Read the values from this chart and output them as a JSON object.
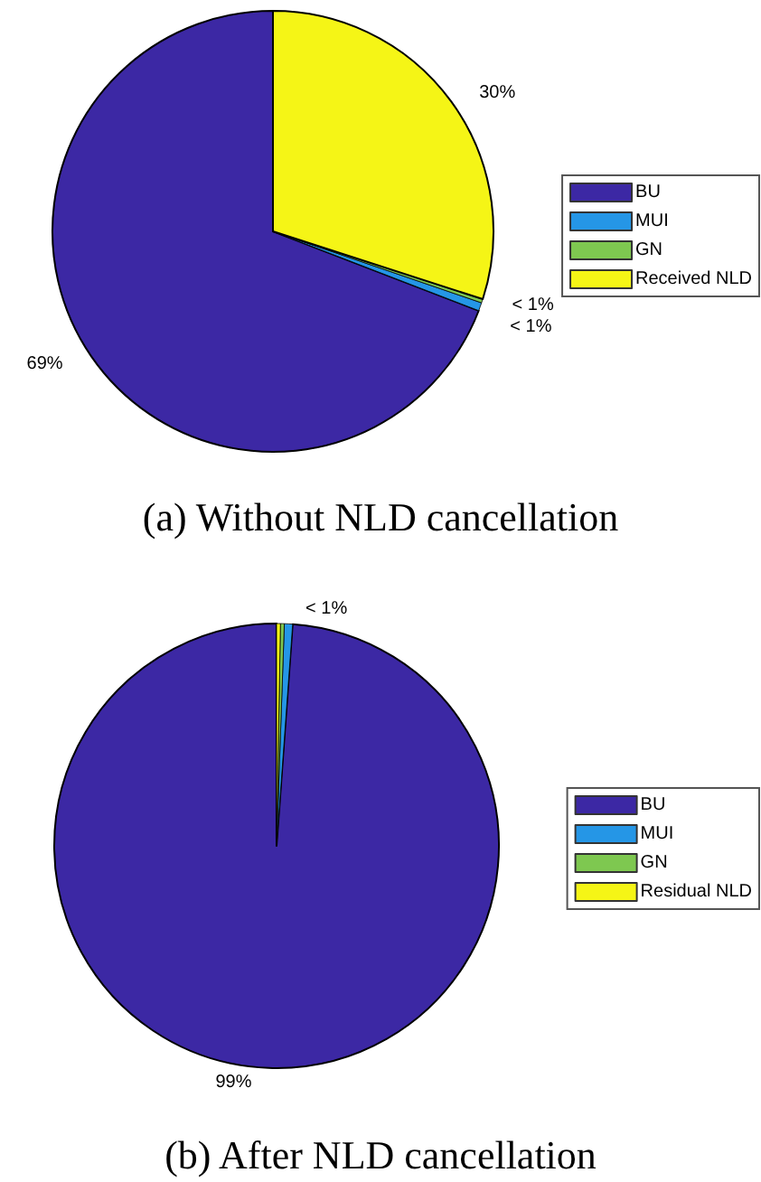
{
  "chart_data": [
    {
      "type": "pie",
      "title": "(a) Without NLD cancellation",
      "categories": [
        "BU",
        "MUI",
        "GN",
        "Received NLD"
      ],
      "values": [
        69.2,
        0.6,
        0.2,
        30
      ],
      "value_labels": [
        "69%",
        "< 1%",
        "< 1%",
        "30%"
      ],
      "colors": [
        "#3c28a4",
        "#2596e6",
        "#7ec850",
        "#f5f516"
      ],
      "legend": "right"
    },
    {
      "type": "pie",
      "title": "(b) After NLD cancellation",
      "categories": [
        "BU",
        "MUI",
        "GN",
        "Residual NLD"
      ],
      "values": [
        99.2,
        0.6,
        0.1,
        0.1
      ],
      "value_labels": [
        "99%",
        "< 1%",
        null,
        null
      ],
      "colors": [
        "#3c28a4",
        "#2596e6",
        "#7ec850",
        "#f5f516"
      ],
      "legend": "right"
    }
  ]
}
